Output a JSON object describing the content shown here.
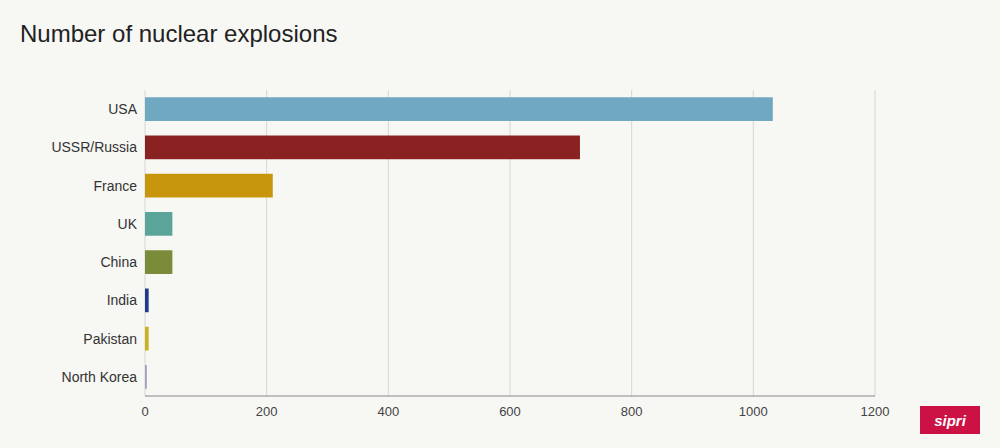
{
  "chart_data": {
    "type": "bar",
    "orientation": "horizontal",
    "title": "Number of nuclear explosions",
    "categories": [
      "USA",
      "USSR/Russia",
      "France",
      "UK",
      "China",
      "India",
      "Pakistan",
      "North Korea"
    ],
    "values": [
      1032,
      715,
      210,
      45,
      45,
      6,
      6,
      3
    ],
    "colors": [
      "#6fa8c0",
      "#8b2222",
      "#c8960c",
      "#5ba49a",
      "#7a8c3a",
      "#1f3a8a",
      "#c8b420",
      "#a89bc0"
    ],
    "xlim": [
      0,
      1200
    ],
    "xticks": [
      0,
      200,
      400,
      600,
      800,
      1000,
      1200
    ],
    "grid": true,
    "annotations": [
      "sipri"
    ]
  }
}
